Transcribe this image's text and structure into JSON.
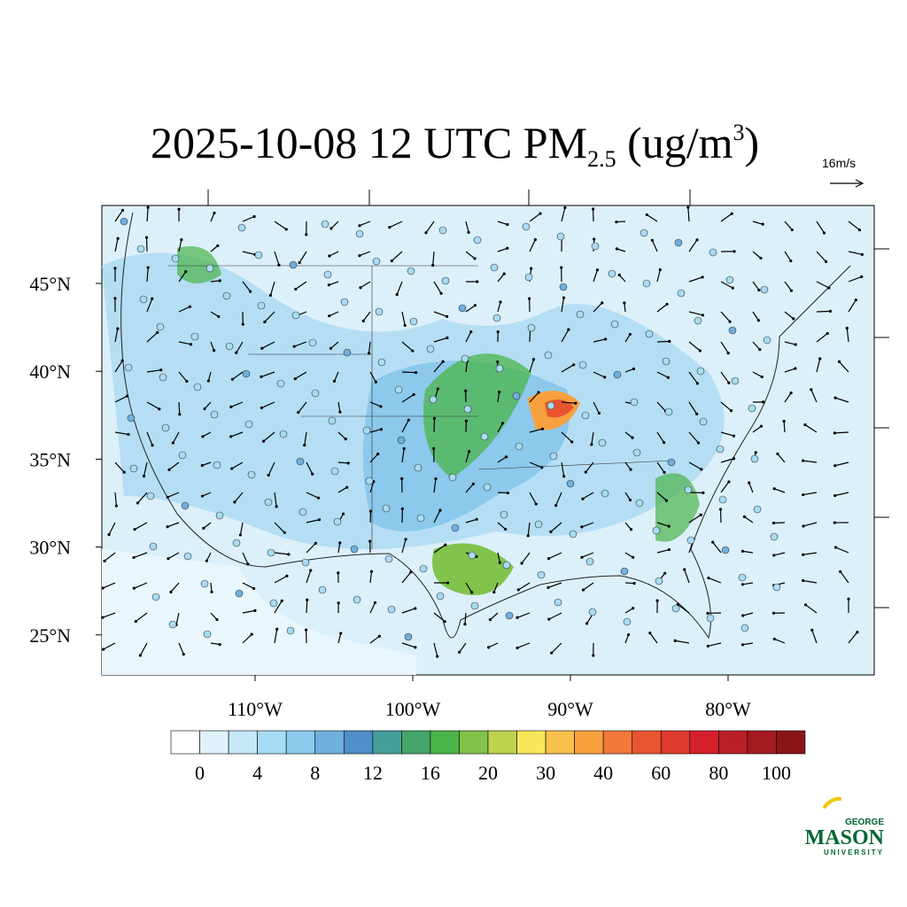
{
  "header": {
    "title_main": "2025-10-08 12 UTC PM",
    "title_sub": "2.5",
    "title_unit_open": " (ug/m",
    "title_sup": "3",
    "title_close": ")",
    "wind_reference": "16m/s"
  },
  "map": {
    "lat_labels": [
      "45°N",
      "40°N",
      "35°N",
      "30°N",
      "25°N"
    ],
    "lon_labels": [
      "110°W",
      "100°W",
      "90°W",
      "80°W"
    ]
  },
  "colorbar": {
    "colors": [
      "#ffffff",
      "#dff2fb",
      "#c4e8f8",
      "#a6dcf4",
      "#8ccaed",
      "#6eb0de",
      "#4e8fcc",
      "#469e9c",
      "#45a56a",
      "#4bb44a",
      "#82c34b",
      "#bdd34e",
      "#f7e85a",
      "#f9c14b",
      "#f7a03e",
      "#f2793a",
      "#e85530",
      "#df3a2e",
      "#d5202c",
      "#bb1f26",
      "#a31a21",
      "#8a1519"
    ],
    "labels": [
      "0",
      "4",
      "8",
      "12",
      "16",
      "20",
      "30",
      "40",
      "60",
      "80",
      "100"
    ]
  },
  "logo": {
    "top": "GEORGE",
    "main": "MASON",
    "bottom": "UNIVERSITY"
  }
}
